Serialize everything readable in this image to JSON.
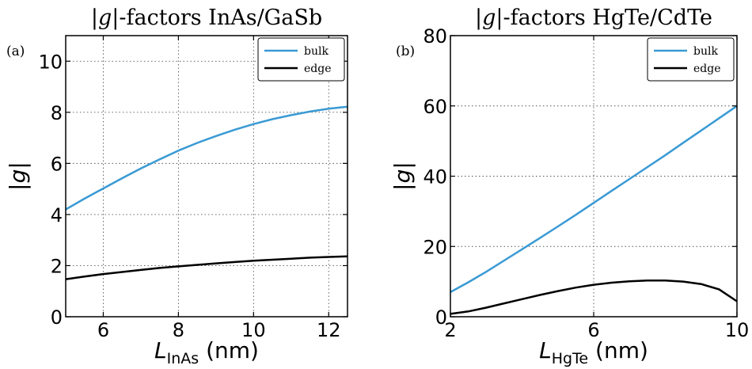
{
  "chart_data": [
    {
      "type": "line",
      "panel_label": "(a)",
      "title_parts": [
        "|",
        "g",
        "|-factors InAs/GaSb"
      ],
      "xlabel_main": "L",
      "xlabel_sub": "InAs",
      "xlabel_unit": " (nm)",
      "ylabel": "|g|",
      "xlim": [
        5,
        12.5
      ],
      "ylim": [
        0,
        11
      ],
      "xticks": [
        6,
        8,
        10,
        12
      ],
      "yticks": [
        0,
        2,
        4,
        6,
        8,
        10
      ],
      "grid": true,
      "legend_position": "top-right",
      "series": [
        {
          "name": "bulk",
          "color": "#3a9ad4",
          "x": [
            5.0,
            5.5,
            6.0,
            6.5,
            7.0,
            7.5,
            8.0,
            8.5,
            9.0,
            9.5,
            10.0,
            10.5,
            11.0,
            11.5,
            12.0,
            12.5
          ],
          "y": [
            4.2,
            4.62,
            5.02,
            5.42,
            5.8,
            6.16,
            6.5,
            6.8,
            7.07,
            7.32,
            7.54,
            7.73,
            7.89,
            8.03,
            8.14,
            8.22
          ]
        },
        {
          "name": "edge",
          "color": "#000000",
          "x": [
            5.0,
            5.5,
            6.0,
            6.5,
            7.0,
            7.5,
            8.0,
            8.5,
            9.0,
            9.5,
            10.0,
            10.5,
            11.0,
            11.5,
            12.0,
            12.5
          ],
          "y": [
            1.47,
            1.57,
            1.67,
            1.75,
            1.83,
            1.91,
            1.97,
            2.03,
            2.09,
            2.14,
            2.19,
            2.23,
            2.27,
            2.31,
            2.34,
            2.36
          ]
        }
      ]
    },
    {
      "type": "line",
      "panel_label": "(b)",
      "title_parts": [
        "|",
        "g",
        "|-factors HgTe/CdTe"
      ],
      "xlabel_main": "L",
      "xlabel_sub": "HgTe",
      "xlabel_unit": " (nm)",
      "ylabel": "|g|",
      "xlim": [
        2,
        10
      ],
      "ylim": [
        0,
        80
      ],
      "xticks": [
        2,
        6,
        10
      ],
      "yticks": [
        0,
        20,
        40,
        60,
        80
      ],
      "grid": true,
      "legend_position": "top-right",
      "series": [
        {
          "name": "bulk",
          "color": "#3a9ad4",
          "x": [
            2.0,
            2.5,
            3.0,
            3.5,
            4.0,
            4.5,
            5.0,
            5.5,
            6.0,
            6.5,
            7.0,
            7.5,
            8.0,
            8.5,
            9.0,
            9.5,
            10.0
          ],
          "y": [
            7.0,
            9.8,
            12.8,
            16.0,
            19.2,
            22.4,
            25.7,
            29.0,
            32.4,
            35.8,
            39.2,
            42.6,
            46.0,
            49.5,
            53.0,
            56.5,
            60.0
          ]
        },
        {
          "name": "edge",
          "color": "#000000",
          "x": [
            2.0,
            2.5,
            3.0,
            3.5,
            4.0,
            4.5,
            5.0,
            5.5,
            6.0,
            6.5,
            7.0,
            7.5,
            8.0,
            8.5,
            9.0,
            9.5,
            10.0
          ],
          "y": [
            0.8,
            1.5,
            2.6,
            3.8,
            5.0,
            6.2,
            7.3,
            8.3,
            9.1,
            9.7,
            10.1,
            10.3,
            10.3,
            10.0,
            9.3,
            7.8,
            4.4
          ]
        }
      ]
    }
  ]
}
